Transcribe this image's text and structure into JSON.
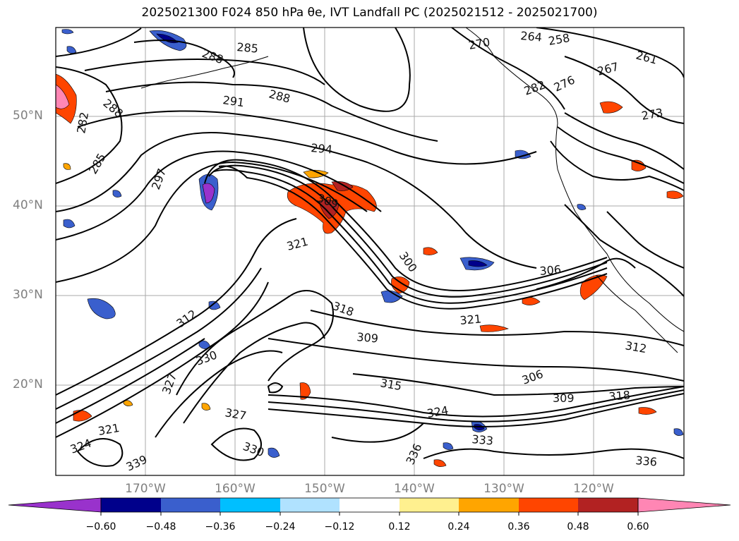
{
  "title": "2025021300 F024 850 hPa θe, IVT Landfall PC (2025021512 - 2025021700)",
  "map": {
    "lat_labels": [
      "50°N",
      "40°N",
      "30°N",
      "20°N"
    ],
    "lon_labels": [
      "170°W",
      "160°W",
      "150°W",
      "140°W",
      "130°W",
      "120°W"
    ],
    "contour_labels": [
      "288",
      "291",
      "288",
      "285",
      "282",
      "285",
      "288",
      "282",
      "270",
      "264",
      "258",
      "261",
      "267",
      "276",
      "273",
      "294",
      "297",
      "309",
      "300",
      "306",
      "321",
      "321",
      "318",
      "312",
      "309",
      "312",
      "306",
      "309",
      "318",
      "315",
      "324",
      "327",
      "330",
      "333",
      "336",
      "336",
      "339",
      "330",
      "324",
      "321",
      "327"
    ]
  },
  "colorbar": {
    "ticks": [
      "−0.60",
      "−0.48",
      "−0.36",
      "−0.24",
      "−0.12",
      "0.12",
      "0.24",
      "0.36",
      "0.48",
      "0.60"
    ],
    "colors": [
      "#9932cc",
      "#00008b",
      "#3a5fcd",
      "#00bfff",
      "#b0e2ff",
      "#ffffff",
      "#fff08f",
      "#ffa500",
      "#ff4500",
      "#b22222",
      "#ff86b4"
    ]
  }
}
